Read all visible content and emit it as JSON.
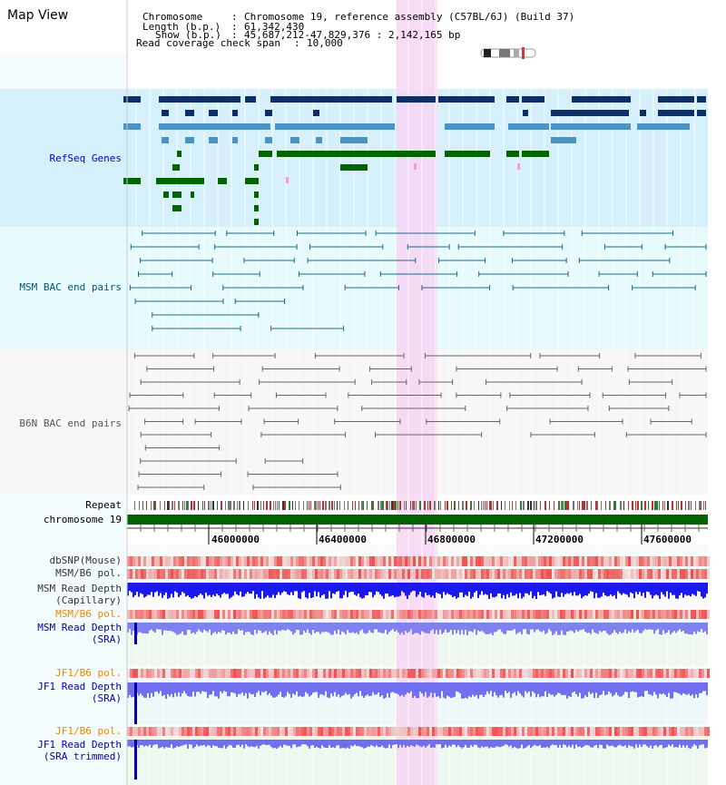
{
  "view_title": "Map View",
  "info": {
    "chromosome_label": "Chromosome",
    "chromosome_value": "Chromosome 19, reference assembly (C57BL/6J) (Build 37)",
    "length_label": "Length (b.p.)",
    "length_value": "61,342,430",
    "show_label": "Show (b.p.)",
    "show_value": "45,687,212-47,829,376 : 2,142,165 bp",
    "coverage_label": "Read coverage check span",
    "coverage_value": "10,000"
  },
  "tracks": {
    "refseq": "RefSeq Genes",
    "msm_bac": "MSM BAC end pairs",
    "b6n_bac": "B6N BAC end pairs",
    "repeat": "Repeat",
    "chromosome": "chromosome 19",
    "dbsnp": "dbSNP(Mouse)",
    "msm_b6_pol_1": "MSM/B6 pol.",
    "msm_depth_cap_1": "MSM Read Depth",
    "msm_depth_cap_2": "(Capillary)",
    "msm_b6_pol_2": "MSM/B6 pol.",
    "msm_depth_sra_1": "MSM Read Depth",
    "msm_depth_sra_2": "(SRA)",
    "jf1_b6_pol_1": "JF1/B6 pol.",
    "jf1_depth_sra_1": "JF1 Read Depth",
    "jf1_depth_sra_2": "(SRA)",
    "jf1_b6_pol_2": "JF1/B6 pol.",
    "jf1_depth_trim_1": "JF1 Read Depth",
    "jf1_depth_trim_2": "(SRA trimmed)"
  },
  "ruler": {
    "ticks": [
      "46000000",
      "46400000",
      "46800000",
      "47200000",
      "47600000"
    ]
  },
  "colors": {
    "refseq_bg": "#d6f0fb",
    "bac_bg": "#e7fbfd",
    "b6n_bg": "#f7f7f7",
    "highlight": "#f7d6f5",
    "chrom_bar": "#006400",
    "refseq_label": "#0000cc",
    "bac_label": "#005577",
    "pol_label": "#ee8800",
    "depth_label": "#0000aa"
  }
}
